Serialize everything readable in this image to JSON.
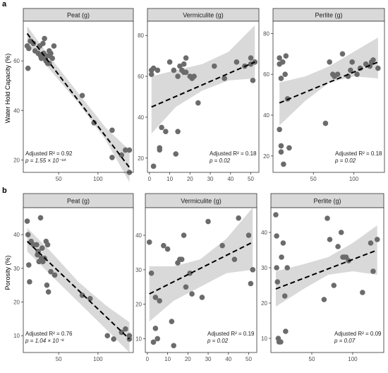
{
  "figure": {
    "row_labels": [
      "a",
      "b"
    ],
    "row_ylabels": [
      "Water Hold Capacity (%)",
      "Porosity (%)"
    ]
  },
  "colors": {
    "point": "#6b6b6b",
    "ribbon": "#d9d9d9",
    "line": "#000000",
    "strip": "#d9d9d9",
    "border": "#333333",
    "tick_text": "#4d4d4d"
  },
  "chart_data": [
    {
      "type": "scatter",
      "title": "Peat (g)",
      "ylabel": "Water Hold Capacity (%)",
      "xlim": [
        5,
        145
      ],
      "ylim": [
        15,
        76
      ],
      "xticks": [
        50,
        100
      ],
      "yticks": [
        20,
        40,
        60
      ],
      "grid": false,
      "points": [
        [
          10,
          66
        ],
        [
          12,
          65
        ],
        [
          11,
          57
        ],
        [
          14,
          68
        ],
        [
          18,
          67
        ],
        [
          20,
          64
        ],
        [
          24,
          63
        ],
        [
          26,
          66
        ],
        [
          27,
          62
        ],
        [
          28,
          61
        ],
        [
          30,
          67
        ],
        [
          31,
          63
        ],
        [
          32,
          69
        ],
        [
          33,
          61
        ],
        [
          34,
          60
        ],
        [
          35,
          62
        ],
        [
          36,
          59
        ],
        [
          38,
          64
        ],
        [
          40,
          63
        ],
        [
          42,
          61
        ],
        [
          44,
          66
        ],
        [
          38,
          59
        ],
        [
          39,
          62
        ],
        [
          80,
          46
        ],
        [
          95,
          35
        ],
        [
          118,
          32
        ],
        [
          118,
          21
        ],
        [
          130,
          22
        ],
        [
          135,
          24
        ],
        [
          140,
          24
        ],
        [
          140,
          15
        ]
      ],
      "fit": {
        "x": [
          10,
          140
        ],
        "y": [
          71,
          17
        ]
      },
      "band": {
        "upper": [
          [
            10,
            74
          ],
          [
            40,
            61
          ],
          [
            75,
            47
          ],
          [
            110,
            33
          ],
          [
            140,
            24
          ]
        ],
        "lower": [
          [
            10,
            67
          ],
          [
            40,
            56
          ],
          [
            75,
            43
          ],
          [
            110,
            28
          ],
          [
            140,
            11
          ]
        ]
      },
      "annotation": {
        "r2_text": "Adjusted R² = 0.92",
        "p_text": "p =  1.55 × 10⁻¹⁴",
        "position": "bottom-left"
      }
    },
    {
      "type": "scatter",
      "title": "Vermiculite (g)",
      "ylabel": "",
      "xlim": [
        -1,
        54
      ],
      "ylim": [
        13,
        87
      ],
      "xticks": [
        0,
        10,
        20,
        30,
        40,
        50
      ],
      "yticks": [
        20,
        40,
        60,
        80
      ],
      "grid": false,
      "points": [
        [
          1,
          63
        ],
        [
          1,
          61
        ],
        [
          2,
          64
        ],
        [
          2,
          16
        ],
        [
          4,
          63
        ],
        [
          5,
          25
        ],
        [
          5,
          24
        ],
        [
          6,
          35
        ],
        [
          8,
          33
        ],
        [
          10,
          67
        ],
        [
          12,
          63
        ],
        [
          14,
          60
        ],
        [
          14,
          33
        ],
        [
          13,
          22
        ],
        [
          15,
          65
        ],
        [
          16,
          63
        ],
        [
          17,
          62
        ],
        [
          17,
          66
        ],
        [
          18,
          69
        ],
        [
          18,
          62
        ],
        [
          20,
          60
        ],
        [
          21,
          59
        ],
        [
          22,
          60
        ],
        [
          24,
          47
        ],
        [
          32,
          65
        ],
        [
          37,
          59
        ],
        [
          43,
          67
        ],
        [
          47,
          65
        ],
        [
          50,
          66
        ],
        [
          50,
          69
        ],
        [
          51,
          58
        ],
        [
          52,
          67
        ]
      ],
      "fit": {
        "x": [
          1,
          52
        ],
        "y": [
          45,
          67
        ]
      },
      "band": {
        "upper": [
          [
            1,
            60
          ],
          [
            13,
            63
          ],
          [
            26,
            66
          ],
          [
            39,
            72
          ],
          [
            52,
            85
          ]
        ],
        "lower": [
          [
            1,
            32
          ],
          [
            13,
            45
          ],
          [
            26,
            53
          ],
          [
            39,
            58
          ],
          [
            52,
            59
          ]
        ]
      },
      "annotation": {
        "r2_text": "Adjusted R² = 0.18",
        "p_text": "p  = 0.02",
        "position": "bottom-right"
      }
    },
    {
      "type": "scatter",
      "title": "Perlite (g)",
      "ylabel": "",
      "xlim": [
        0,
        138
      ],
      "ylim": [
        12,
        86
      ],
      "xticks": [
        50,
        100
      ],
      "yticks": [
        20,
        40,
        60,
        80
      ],
      "grid": false,
      "points": [
        [
          8,
          68
        ],
        [
          8,
          65
        ],
        [
          8,
          33
        ],
        [
          10,
          22
        ],
        [
          10,
          25
        ],
        [
          10,
          58
        ],
        [
          12,
          66
        ],
        [
          13,
          16
        ],
        [
          15,
          60
        ],
        [
          16,
          69
        ],
        [
          18,
          48
        ],
        [
          20,
          24
        ],
        [
          65,
          36
        ],
        [
          70,
          66
        ],
        [
          74,
          60
        ],
        [
          76,
          59
        ],
        [
          80,
          60
        ],
        [
          86,
          70
        ],
        [
          93,
          59
        ],
        [
          96,
          62
        ],
        [
          98,
          66
        ],
        [
          104,
          60
        ],
        [
          108,
          63
        ],
        [
          115,
          65
        ],
        [
          120,
          64
        ],
        [
          122,
          66
        ],
        [
          124,
          67
        ],
        [
          130,
          63
        ]
      ],
      "fit": {
        "x": [
          8,
          130
        ],
        "y": [
          46,
          66
        ]
      },
      "band": {
        "upper": [
          [
            8,
            56
          ],
          [
            40,
            59
          ],
          [
            70,
            64
          ],
          [
            100,
            71
          ],
          [
            130,
            78
          ]
        ],
        "lower": [
          [
            8,
            35
          ],
          [
            40,
            47
          ],
          [
            70,
            56
          ],
          [
            100,
            59
          ],
          [
            130,
            58
          ]
        ]
      },
      "annotation": {
        "r2_text": "Adjusted R² = 0.18",
        "p_text": "p  = 0.02",
        "position": "bottom-right"
      }
    },
    {
      "type": "scatter",
      "title": "Peat (g)",
      "ylabel": "Porosity (%)",
      "xlim": [
        5,
        145
      ],
      "ylim": [
        5,
        48
      ],
      "xticks": [
        50,
        100
      ],
      "yticks": [
        10,
        20,
        30,
        40
      ],
      "grid": false,
      "points": [
        [
          10,
          44
        ],
        [
          11,
          40
        ],
        [
          12,
          31
        ],
        [
          13,
          26
        ],
        [
          15,
          38
        ],
        [
          18,
          37
        ],
        [
          22,
          37
        ],
        [
          23,
          34
        ],
        [
          24,
          35
        ],
        [
          25,
          32
        ],
        [
          27,
          45
        ],
        [
          28,
          33
        ],
        [
          29,
          36
        ],
        [
          30,
          32
        ],
        [
          32,
          33
        ],
        [
          34,
          38
        ],
        [
          35,
          25
        ],
        [
          36,
          37
        ],
        [
          37,
          23
        ],
        [
          40,
          29
        ],
        [
          45,
          28
        ],
        [
          80,
          22
        ],
        [
          90,
          21
        ],
        [
          112,
          10
        ],
        [
          120,
          9
        ],
        [
          130,
          11
        ],
        [
          135,
          12
        ],
        [
          140,
          10
        ],
        [
          140,
          9
        ]
      ],
      "fit": {
        "x": [
          10,
          140
        ],
        "y": [
          38,
          9
        ]
      },
      "band": {
        "upper": [
          [
            10,
            42
          ],
          [
            40,
            35
          ],
          [
            75,
            26
          ],
          [
            110,
            19
          ],
          [
            140,
            14
          ]
        ],
        "lower": [
          [
            10,
            35
          ],
          [
            40,
            28
          ],
          [
            75,
            20
          ],
          [
            110,
            12
          ],
          [
            140,
            5
          ]
        ]
      },
      "annotation": {
        "r2_text": "Adjusted R² = 0.76",
        "p_text": "p = 1.04 × 10⁻⁸",
        "position": "bottom-left"
      }
    },
    {
      "type": "scatter",
      "title": "Vermiculite (g)",
      "ylabel": "",
      "xlim": [
        -1,
        54
      ],
      "ylim": [
        6,
        48
      ],
      "xticks": [
        0,
        10,
        20,
        30,
        40,
        50
      ],
      "yticks": [
        10,
        20,
        30,
        40
      ],
      "grid": false,
      "points": [
        [
          1,
          38
        ],
        [
          2,
          29
        ],
        [
          3,
          9
        ],
        [
          4,
          13
        ],
        [
          4,
          22
        ],
        [
          5,
          10
        ],
        [
          6,
          21
        ],
        [
          8,
          37
        ],
        [
          10,
          36
        ],
        [
          12,
          15
        ],
        [
          13,
          8
        ],
        [
          15,
          32
        ],
        [
          16,
          33
        ],
        [
          17,
          33
        ],
        [
          18,
          40
        ],
        [
          19,
          25
        ],
        [
          21,
          29
        ],
        [
          22,
          23
        ],
        [
          27,
          22
        ],
        [
          30,
          44
        ],
        [
          37,
          37
        ],
        [
          43,
          33
        ],
        [
          45,
          45
        ],
        [
          50,
          40
        ],
        [
          51,
          26
        ],
        [
          52,
          30
        ]
      ],
      "fit": {
        "x": [
          1,
          52
        ],
        "y": [
          23,
          38
        ]
      },
      "band": {
        "upper": [
          [
            1,
            31
          ],
          [
            13,
            31
          ],
          [
            26,
            33
          ],
          [
            39,
            39
          ],
          [
            52,
            48
          ]
        ],
        "lower": [
          [
            1,
            15
          ],
          [
            13,
            21
          ],
          [
            26,
            25
          ],
          [
            39,
            29
          ],
          [
            52,
            30
          ]
        ]
      },
      "annotation": {
        "r2_text": "Adjusted R² = 0.19",
        "p_text": "p = 0.02",
        "position": "bottom-right"
      }
    },
    {
      "type": "scatter",
      "title": "Perlite (g)",
      "ylabel": "",
      "xlim": [
        0,
        138
      ],
      "ylim": [
        6,
        47
      ],
      "xticks": [
        50,
        100
      ],
      "yticks": [
        10,
        20,
        30,
        40
      ],
      "grid": false,
      "points": [
        [
          6,
          45
        ],
        [
          7,
          39
        ],
        [
          7,
          30
        ],
        [
          8,
          26
        ],
        [
          9,
          10
        ],
        [
          10,
          9
        ],
        [
          12,
          9
        ],
        [
          13,
          33
        ],
        [
          15,
          37
        ],
        [
          17,
          22
        ],
        [
          18,
          12
        ],
        [
          20,
          30
        ],
        [
          65,
          21
        ],
        [
          69,
          44
        ],
        [
          72,
          38
        ],
        [
          77,
          25
        ],
        [
          82,
          36
        ],
        [
          86,
          40
        ],
        [
          88,
          33
        ],
        [
          90,
          33
        ],
        [
          92,
          33
        ],
        [
          95,
          32
        ],
        [
          112,
          23
        ],
        [
          122,
          37
        ],
        [
          125,
          29
        ],
        [
          130,
          38
        ]
      ],
      "fit": {
        "x": [
          6,
          130
        ],
        "y": [
          24,
          35
        ]
      },
      "band": {
        "upper": [
          [
            6,
            29
          ],
          [
            40,
            31
          ],
          [
            70,
            33
          ],
          [
            100,
            37
          ],
          [
            130,
            42
          ]
        ],
        "lower": [
          [
            6,
            19
          ],
          [
            40,
            24
          ],
          [
            70,
            28
          ],
          [
            100,
            29
          ],
          [
            130,
            28
          ]
        ]
      },
      "annotation": {
        "r2_text": "Adjusted R² = 0.09",
        "p_text": "p = 0.07",
        "position": "bottom-right"
      }
    }
  ]
}
